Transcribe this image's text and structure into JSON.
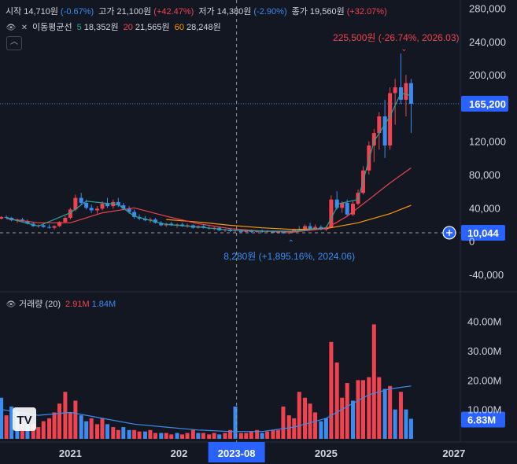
{
  "header": {
    "open_label": "시작",
    "open_value": "14,710원",
    "open_change": "(-0.67%)",
    "high_label": "고가",
    "high_value": "21,100원",
    "high_change": "(+42.47%)",
    "low_label": "저가",
    "low_value": "14,380원",
    "low_change": "(-2.90%)",
    "close_label": "종가",
    "close_value": "19,560원",
    "close_change": "(+32.07%)"
  },
  "ma_legend": {
    "title": "이동평균선",
    "p5": "5",
    "v5": "18,352원",
    "p20": "20",
    "v20": "21,565원",
    "p60": "60",
    "v60": "28,248원"
  },
  "volume_legend": {
    "title": "거래량 (20)",
    "v1": "2.91M",
    "v2": "1.84M"
  },
  "colors": {
    "up": "#f0434f",
    "down": "#3b8cf0",
    "ma5": "#26a69a",
    "ma20": "#f0434f",
    "ma60": "#ff9800",
    "vol_ma": "#3b8cf0"
  },
  "chart_data": {
    "type": "candlestick",
    "price_axis": {
      "ticks": [
        280000,
        240000,
        200000,
        165200,
        120000,
        80000,
        40000,
        0,
        -40000
      ],
      "tick_labels": [
        "280,000",
        "240,000",
        "200,000",
        "165,200",
        "120,000",
        "80,000",
        "40,000",
        "0",
        "-40,000"
      ],
      "range": [
        -60000,
        290000
      ]
    },
    "volume_axis": {
      "tick_labels": [
        "40.00M",
        "30.00M",
        "20.00M",
        "10.00M"
      ],
      "ticks": [
        40,
        30,
        20,
        10
      ],
      "range": [
        0,
        45
      ],
      "unit": "M"
    },
    "time_axis": {
      "labels": [
        "2021",
        "202",
        "2023-08",
        "2025",
        "2027"
      ],
      "positions": [
        2021.0,
        2022.7,
        2023.6,
        2025.0,
        2027.0
      ],
      "range": [
        2019.9,
        2027.1
      ]
    },
    "current_price": {
      "value": 165200,
      "label": "165,200"
    },
    "crosshair": {
      "price": 10044,
      "label": "10,044",
      "time": 2023.6,
      "time_label": "2023-08"
    },
    "high_annotation": {
      "text": "225,500원 (-26.74%, 2026.03)",
      "value": 225500,
      "time": 2026.22
    },
    "low_annotation": {
      "text": "8,280원 (+1,895.16%, 2024.06)",
      "value": 8280,
      "time": 2024.45
    },
    "volume_current": {
      "value": 6.83,
      "label": "6.83M"
    },
    "candles_monthly": [
      [
        2019.92,
        27000,
        30000,
        26000,
        29000
      ],
      [
        2020.0,
        29000,
        31000,
        27000,
        28000
      ],
      [
        2020.08,
        28000,
        29000,
        24000,
        25000
      ],
      [
        2020.17,
        25000,
        27000,
        22000,
        26000
      ],
      [
        2020.25,
        26000,
        28000,
        23000,
        24000
      ],
      [
        2020.33,
        24000,
        26000,
        20000,
        21000
      ],
      [
        2020.42,
        21000,
        23000,
        17000,
        18000
      ],
      [
        2020.5,
        18000,
        20000,
        16000,
        19000
      ],
      [
        2020.58,
        19000,
        21000,
        16000,
        17000
      ],
      [
        2020.67,
        17000,
        20000,
        15000,
        16000
      ],
      [
        2020.75,
        16000,
        19000,
        14000,
        18000
      ],
      [
        2020.83,
        18000,
        24000,
        17000,
        23000
      ],
      [
        2020.92,
        23000,
        30000,
        22000,
        28000
      ],
      [
        2021.0,
        28000,
        40000,
        26000,
        38000
      ],
      [
        2021.08,
        38000,
        56000,
        36000,
        52000
      ],
      [
        2021.17,
        52000,
        58000,
        44000,
        46000
      ],
      [
        2021.25,
        46000,
        50000,
        38000,
        40000
      ],
      [
        2021.33,
        40000,
        44000,
        34000,
        37000
      ],
      [
        2021.42,
        37000,
        42000,
        33000,
        39000
      ],
      [
        2021.5,
        39000,
        48000,
        37000,
        45000
      ],
      [
        2021.58,
        45000,
        52000,
        40000,
        42000
      ],
      [
        2021.67,
        42000,
        50000,
        39000,
        47000
      ],
      [
        2021.75,
        47000,
        52000,
        41000,
        43000
      ],
      [
        2021.83,
        43000,
        46000,
        37000,
        39000
      ],
      [
        2021.92,
        39000,
        42000,
        33000,
        35000
      ],
      [
        2022.0,
        35000,
        38000,
        27000,
        29000
      ],
      [
        2022.08,
        29000,
        32000,
        25000,
        27000
      ],
      [
        2022.17,
        27000,
        30000,
        24000,
        25000
      ],
      [
        2022.25,
        25000,
        28000,
        22000,
        26000
      ],
      [
        2022.33,
        26000,
        28000,
        21000,
        22000
      ],
      [
        2022.42,
        22000,
        24000,
        18000,
        19000
      ],
      [
        2022.5,
        19000,
        22000,
        17000,
        21000
      ],
      [
        2022.58,
        21000,
        23000,
        18000,
        19000
      ],
      [
        2022.67,
        19000,
        21000,
        16000,
        20000
      ],
      [
        2022.75,
        20000,
        22000,
        17000,
        18000
      ],
      [
        2022.83,
        18000,
        21000,
        16000,
        19000
      ],
      [
        2022.92,
        19000,
        20000,
        15000,
        16000
      ],
      [
        2023.0,
        16000,
        19000,
        15000,
        18000
      ],
      [
        2023.08,
        18000,
        20000,
        15000,
        16000
      ],
      [
        2023.17,
        16000,
        18000,
        14000,
        15000
      ],
      [
        2023.25,
        15000,
        17000,
        13000,
        16000
      ],
      [
        2023.33,
        16000,
        17000,
        12000,
        13000
      ],
      [
        2023.42,
        13000,
        15000,
        11000,
        14000
      ],
      [
        2023.5,
        14000,
        16000,
        11000,
        12000
      ],
      [
        2023.58,
        12000,
        14000,
        10000,
        13000
      ],
      [
        2023.67,
        13000,
        14000,
        10000,
        11000
      ],
      [
        2023.75,
        11000,
        14000,
        10000,
        13000
      ],
      [
        2023.83,
        13000,
        14000,
        10000,
        11000
      ],
      [
        2023.92,
        11000,
        13000,
        10000,
        12000
      ],
      [
        2024.0,
        12000,
        14000,
        10000,
        11000
      ],
      [
        2024.08,
        11000,
        13000,
        10000,
        12000
      ],
      [
        2024.17,
        12000,
        13000,
        9500,
        10000
      ],
      [
        2024.25,
        10000,
        12000,
        9000,
        11000
      ],
      [
        2024.33,
        11000,
        12000,
        8800,
        9500
      ],
      [
        2024.42,
        9500,
        11000,
        8280,
        10500
      ],
      [
        2024.5,
        10500,
        15000,
        9800,
        14000
      ],
      [
        2024.58,
        14000,
        18000,
        12000,
        13000
      ],
      [
        2024.67,
        13000,
        20000,
        12000,
        18000
      ],
      [
        2024.75,
        18000,
        22000,
        14000,
        15000
      ],
      [
        2024.83,
        15000,
        20000,
        13000,
        17000
      ],
      [
        2024.92,
        17000,
        19000,
        13000,
        14000
      ],
      [
        2025.0,
        14000,
        18000,
        12000,
        16500
      ],
      [
        2025.08,
        16500,
        55000,
        16000,
        50000
      ],
      [
        2025.17,
        50000,
        60000,
        38000,
        40000
      ],
      [
        2025.25,
        40000,
        48000,
        34000,
        46000
      ],
      [
        2025.33,
        46000,
        50000,
        30000,
        32000
      ],
      [
        2025.42,
        32000,
        48000,
        30000,
        45000
      ],
      [
        2025.5,
        45000,
        62000,
        43000,
        58000
      ],
      [
        2025.58,
        58000,
        90000,
        56000,
        85000
      ],
      [
        2025.67,
        85000,
        120000,
        80000,
        115000
      ],
      [
        2025.75,
        115000,
        135000,
        95000,
        130000
      ],
      [
        2025.83,
        130000,
        155000,
        110000,
        150000
      ],
      [
        2025.92,
        150000,
        170000,
        100000,
        115000
      ],
      [
        2026.0,
        115000,
        185000,
        110000,
        178000
      ],
      [
        2026.08,
        178000,
        195000,
        140000,
        185000
      ],
      [
        2026.17,
        185000,
        225500,
        165000,
        170000
      ],
      [
        2026.25,
        170000,
        200000,
        150000,
        190000
      ],
      [
        2026.33,
        190000,
        195000,
        130000,
        165200
      ]
    ],
    "ma20_line": [
      [
        2020.0,
        27000
      ],
      [
        2020.5,
        22000
      ],
      [
        2021.0,
        22000
      ],
      [
        2021.5,
        34000
      ],
      [
        2022.0,
        40000
      ],
      [
        2022.5,
        30000
      ],
      [
        2023.0,
        21000
      ],
      [
        2023.5,
        15000
      ],
      [
        2024.0,
        12000
      ],
      [
        2024.5,
        11000
      ],
      [
        2025.0,
        15000
      ],
      [
        2025.33,
        30000
      ],
      [
        2025.67,
        50000
      ],
      [
        2026.0,
        70000
      ],
      [
        2026.33,
        88000
      ]
    ],
    "ma60_line": [
      [
        2022.5,
        26000
      ],
      [
        2023.0,
        23000
      ],
      [
        2023.5,
        19000
      ],
      [
        2024.0,
        16000
      ],
      [
        2024.5,
        14000
      ],
      [
        2025.0,
        15000
      ],
      [
        2025.5,
        22000
      ],
      [
        2026.0,
        33000
      ],
      [
        2026.33,
        43000
      ]
    ],
    "ma5_line": [
      [
        2020.0,
        28000
      ],
      [
        2020.5,
        18000
      ],
      [
        2021.0,
        34000
      ],
      [
        2021.25,
        48000
      ],
      [
        2021.75,
        44000
      ],
      [
        2022.0,
        30000
      ],
      [
        2022.5,
        20000
      ],
      [
        2023.0,
        17000
      ],
      [
        2023.5,
        13000
      ],
      [
        2024.0,
        12000
      ],
      [
        2024.5,
        12000
      ],
      [
        2025.0,
        16000
      ],
      [
        2025.2,
        45000
      ],
      [
        2025.5,
        50000
      ],
      [
        2025.75,
        120000
      ],
      [
        2026.0,
        150000
      ],
      [
        2026.17,
        178000
      ],
      [
        2026.33,
        175000
      ]
    ],
    "volume_monthly": [
      [
        2019.92,
        14,
        "down"
      ],
      [
        2020.0,
        8,
        "up"
      ],
      [
        2020.08,
        11,
        "down"
      ],
      [
        2020.17,
        9,
        "down"
      ],
      [
        2020.25,
        6,
        "up"
      ],
      [
        2020.33,
        7,
        "down"
      ],
      [
        2020.42,
        5,
        "up"
      ],
      [
        2020.5,
        4,
        "up"
      ],
      [
        2020.58,
        6,
        "up"
      ],
      [
        2020.67,
        7,
        "up"
      ],
      [
        2020.75,
        9,
        "up"
      ],
      [
        2020.83,
        12,
        "up"
      ],
      [
        2020.92,
        16,
        "up"
      ],
      [
        2021.0,
        9,
        "up"
      ],
      [
        2021.08,
        13,
        "up"
      ],
      [
        2021.17,
        8,
        "down"
      ],
      [
        2021.25,
        6,
        "down"
      ],
      [
        2021.33,
        7,
        "up"
      ],
      [
        2021.42,
        5,
        "up"
      ],
      [
        2021.5,
        7,
        "up"
      ],
      [
        2021.58,
        5,
        "down"
      ],
      [
        2021.67,
        4,
        "up"
      ],
      [
        2021.75,
        3,
        "up"
      ],
      [
        2021.83,
        4,
        "down"
      ],
      [
        2021.92,
        3,
        "down"
      ],
      [
        2022.0,
        3,
        "up"
      ],
      [
        2022.08,
        2.5,
        "up"
      ],
      [
        2022.17,
        2.5,
        "down"
      ],
      [
        2022.25,
        3,
        "up"
      ],
      [
        2022.33,
        2,
        "up"
      ],
      [
        2022.42,
        2,
        "down"
      ],
      [
        2022.5,
        2,
        "up"
      ],
      [
        2022.58,
        1.5,
        "up"
      ],
      [
        2022.67,
        2,
        "down"
      ],
      [
        2022.75,
        1.5,
        "up"
      ],
      [
        2022.83,
        2,
        "up"
      ],
      [
        2022.92,
        3,
        "up"
      ],
      [
        2023.0,
        2,
        "down"
      ],
      [
        2023.08,
        2,
        "up"
      ],
      [
        2023.17,
        1.5,
        "up"
      ],
      [
        2023.25,
        2,
        "up"
      ],
      [
        2023.33,
        1.5,
        "down"
      ],
      [
        2023.42,
        2,
        "up"
      ],
      [
        2023.5,
        3,
        "up"
      ],
      [
        2023.58,
        11,
        "down"
      ],
      [
        2023.67,
        2,
        "up"
      ],
      [
        2023.75,
        2,
        "up"
      ],
      [
        2023.83,
        2.5,
        "up"
      ],
      [
        2023.92,
        3,
        "up"
      ],
      [
        2024.0,
        2,
        "down"
      ],
      [
        2024.08,
        2.5,
        "up"
      ],
      [
        2024.17,
        3,
        "up"
      ],
      [
        2024.25,
        3,
        "up"
      ],
      [
        2024.33,
        11,
        "up"
      ],
      [
        2024.42,
        8,
        "up"
      ],
      [
        2024.5,
        7,
        "up"
      ],
      [
        2024.58,
        16,
        "up"
      ],
      [
        2024.67,
        14,
        "up"
      ],
      [
        2024.75,
        12,
        "up"
      ],
      [
        2024.83,
        9,
        "up"
      ],
      [
        2024.92,
        6,
        "down"
      ],
      [
        2025.0,
        7,
        "down"
      ],
      [
        2025.08,
        33,
        "up"
      ],
      [
        2025.17,
        26,
        "up"
      ],
      [
        2025.25,
        14,
        "up"
      ],
      [
        2025.33,
        19,
        "up"
      ],
      [
        2025.42,
        13,
        "down"
      ],
      [
        2025.5,
        20,
        "up"
      ],
      [
        2025.58,
        20,
        "up"
      ],
      [
        2025.67,
        21,
        "up"
      ],
      [
        2025.75,
        39,
        "up"
      ],
      [
        2025.83,
        21,
        "up"
      ],
      [
        2025.92,
        17,
        "down"
      ],
      [
        2026.0,
        18,
        "up"
      ],
      [
        2026.08,
        10,
        "down"
      ],
      [
        2026.17,
        16,
        "up"
      ],
      [
        2026.25,
        10,
        "down"
      ],
      [
        2026.33,
        6.83,
        "down"
      ]
    ],
    "volume_ma": [
      [
        2019.92,
        10
      ],
      [
        2020.5,
        8
      ],
      [
        2021.0,
        9
      ],
      [
        2021.5,
        7
      ],
      [
        2022.0,
        5
      ],
      [
        2022.5,
        4
      ],
      [
        2023.0,
        3
      ],
      [
        2023.5,
        2.5
      ],
      [
        2024.0,
        2.5
      ],
      [
        2024.5,
        4
      ],
      [
        2025.0,
        7
      ],
      [
        2025.33,
        11
      ],
      [
        2025.67,
        15
      ],
      [
        2026.0,
        17
      ],
      [
        2026.33,
        18
      ]
    ]
  }
}
